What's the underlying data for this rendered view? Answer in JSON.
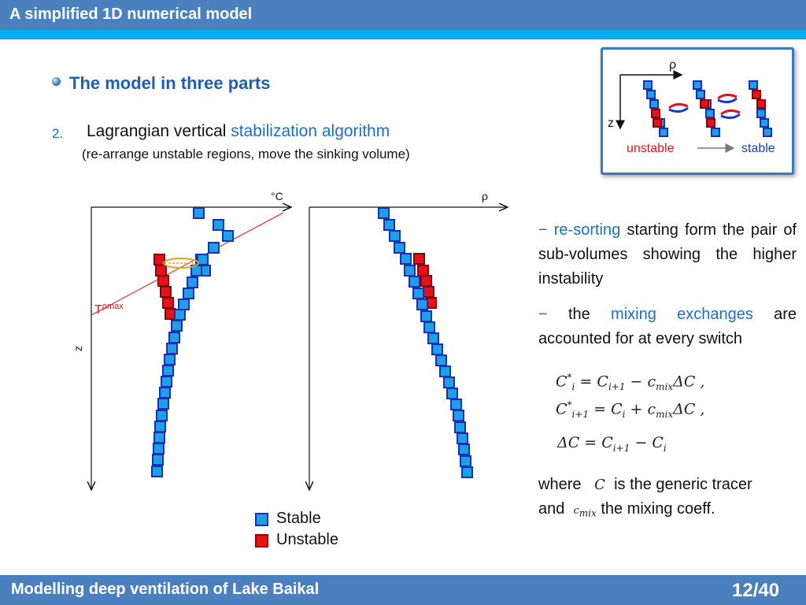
{
  "header": {
    "title": "A simplified 1D numerical model"
  },
  "section": {
    "title": "The model in three parts"
  },
  "item": {
    "number": "2.",
    "text_plain": "Lagrangian vertical ",
    "text_accent": "stabilization algorithm",
    "subtitle": "(re-arrange unstable regions, move the sinking volume)"
  },
  "inset": {
    "axis_rho": "ρ",
    "axis_z": "z",
    "label_unstable": "unstable",
    "label_stable": "stable",
    "colors": {
      "unstable": "#e8101a",
      "stable": "#1a38c8"
    }
  },
  "plot_temp": {
    "axis_label": "°C",
    "z_label": "z",
    "line_label": "T",
    "line_label_sub": "ρmax"
  },
  "plot_rho": {
    "axis_label": "ρ"
  },
  "legend": {
    "stable": "Stable",
    "unstable": "Unstable",
    "colors": {
      "stable_fill": "#1f9fe6",
      "stable_border": "#1a2fb8",
      "unstable_fill": "#e8101a",
      "unstable_border": "#8b0000"
    }
  },
  "bullets": {
    "b1_dash": "−",
    "b1_accent": "re-sorting",
    "b1_rest": "starting form the pair of sub-volumes showing the higher instability",
    "b2_dash": "−",
    "b2_pre": "the",
    "b2_accent": "mixing exchanges",
    "b2_rest": "are accounted for at every switch"
  },
  "equations": {
    "eq1": "C*i = Ci+1 − cmix ΔC ,",
    "eq2": "C*i+1 = Ci + cmix ΔC ,",
    "eq3": "ΔC = Ci+1 − Ci"
  },
  "where_text": {
    "w1": "where",
    "w_var": "C",
    "w2": "is the generic tracer",
    "w3": "and",
    "w_var2": "cmix",
    "w4": "the mixing coeff."
  },
  "footer": {
    "title": "Modelling deep ventilation of Lake Baikal",
    "page": "12/40"
  }
}
